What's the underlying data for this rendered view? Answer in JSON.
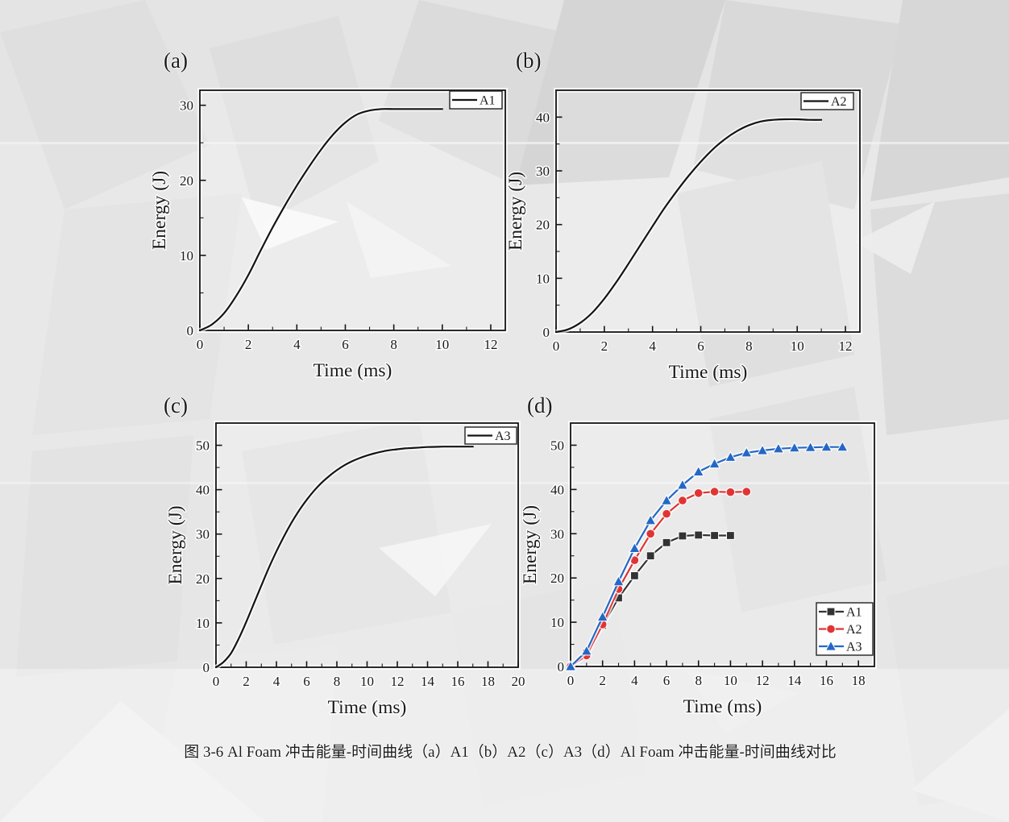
{
  "figure": {
    "caption": "图 3-6 Al Foam 冲击能量-时间曲线（a）A1（b）A2（c）A3（d）Al Foam 冲击能量-时间曲线对比"
  },
  "chart_data": [
    {
      "id": "a",
      "panel_label": "(a)",
      "type": "line",
      "xlabel": "Time (ms)",
      "ylabel": "Energy (J)",
      "xlim": [
        0,
        12.6
      ],
      "ylim": [
        0,
        32
      ],
      "xticks": [
        0,
        2,
        4,
        6,
        8,
        10,
        12
      ],
      "yticks": [
        0,
        10,
        20,
        30
      ],
      "x_minor_step": 1,
      "y_minor_step": 5,
      "grid": false,
      "legend": {
        "position": "top-right",
        "entries": [
          {
            "label": "A1",
            "color": "#141414",
            "marker": "none"
          }
        ]
      },
      "series": [
        {
          "name": "A1",
          "color": "#141414",
          "marker": "none",
          "smooth": true,
          "x": [
            0,
            0.5,
            1,
            1.5,
            2,
            2.5,
            3,
            3.5,
            4,
            4.5,
            5,
            5.5,
            6,
            6.5,
            7,
            7.5,
            8,
            8.5,
            9,
            9.5,
            10
          ],
          "y": [
            0,
            0.8,
            2.3,
            4.6,
            7.4,
            10.6,
            13.7,
            16.6,
            19.3,
            21.8,
            24.1,
            26.1,
            27.7,
            28.8,
            29.3,
            29.5,
            29.5,
            29.5,
            29.5,
            29.5,
            29.5
          ]
        }
      ]
    },
    {
      "id": "b",
      "panel_label": "(b)",
      "type": "line",
      "xlabel": "Time (ms)",
      "ylabel": "Energy (J)",
      "xlim": [
        0,
        12.6
      ],
      "ylim": [
        0,
        45
      ],
      "xticks": [
        0,
        2,
        4,
        6,
        8,
        10,
        12
      ],
      "yticks": [
        0,
        10,
        20,
        30,
        40
      ],
      "x_minor_step": 1,
      "y_minor_step": 5,
      "grid": false,
      "legend": {
        "position": "top-right",
        "entries": [
          {
            "label": "A2",
            "color": "#141414",
            "marker": "none"
          }
        ]
      },
      "series": [
        {
          "name": "A2",
          "color": "#141414",
          "marker": "none",
          "smooth": true,
          "x": [
            0,
            0.5,
            1,
            1.5,
            2,
            2.5,
            3,
            3.5,
            4,
            4.5,
            5,
            5.5,
            6,
            6.5,
            7,
            7.5,
            8,
            8.5,
            9,
            9.5,
            10,
            10.5,
            11
          ],
          "y": [
            0,
            0.5,
            1.7,
            3.6,
            6.2,
            9.3,
            12.7,
            16.2,
            19.7,
            23.1,
            26.2,
            29.1,
            31.7,
            34,
            35.9,
            37.4,
            38.5,
            39.2,
            39.5,
            39.6,
            39.6,
            39.5,
            39.5
          ]
        }
      ]
    },
    {
      "id": "c",
      "panel_label": "(c)",
      "type": "line",
      "xlabel": "Time (ms)",
      "ylabel": "Energy (J)",
      "xlim": [
        0,
        20
      ],
      "ylim": [
        0,
        55
      ],
      "xticks": [
        0,
        2,
        4,
        6,
        8,
        10,
        12,
        14,
        16,
        18,
        20
      ],
      "yticks": [
        0,
        10,
        20,
        30,
        40,
        50
      ],
      "x_minor_step": 1,
      "y_minor_step": 5,
      "grid": false,
      "legend": {
        "position": "top-right",
        "entries": [
          {
            "label": "A3",
            "color": "#141414",
            "marker": "none"
          }
        ]
      },
      "series": [
        {
          "name": "A3",
          "color": "#141414",
          "marker": "none",
          "smooth": true,
          "x": [
            0,
            0.5,
            1,
            1.5,
            2,
            2.5,
            3,
            3.5,
            4,
            4.5,
            5,
            5.5,
            6,
            6.5,
            7,
            7.5,
            8,
            8.5,
            9,
            9.5,
            10,
            10.5,
            11,
            11.5,
            12,
            12.5,
            13,
            13.5,
            14,
            14.5,
            15,
            15.5,
            16,
            16.5,
            17
          ],
          "y": [
            0,
            1.2,
            3.2,
            6.4,
            10.2,
            14.3,
            18.4,
            22.4,
            26.1,
            29.5,
            32.6,
            35.3,
            37.7,
            39.8,
            41.6,
            43.1,
            44.4,
            45.5,
            46.4,
            47.1,
            47.7,
            48.2,
            48.6,
            48.9,
            49.1,
            49.3,
            49.4,
            49.5,
            49.6,
            49.65,
            49.7,
            49.7,
            49.7,
            49.7,
            49.7
          ]
        }
      ]
    },
    {
      "id": "d",
      "panel_label": "(d)",
      "type": "line",
      "xlabel": "Time (ms)",
      "ylabel": "Energy (J)",
      "xlim": [
        0,
        19
      ],
      "ylim": [
        0,
        55
      ],
      "xticks": [
        0,
        2,
        4,
        6,
        8,
        10,
        12,
        14,
        16,
        18
      ],
      "yticks": [
        0,
        10,
        20,
        30,
        40,
        50
      ],
      "x_minor_step": 1,
      "y_minor_step": 5,
      "grid": false,
      "legend": {
        "position": "bottom-right",
        "entries": [
          {
            "label": "A1",
            "color": "#333333",
            "marker": "square"
          },
          {
            "label": "A2",
            "color": "#e03434",
            "marker": "circle"
          },
          {
            "label": "A3",
            "color": "#2468c6",
            "marker": "triangle"
          }
        ]
      },
      "series": [
        {
          "name": "A1",
          "color": "#333333",
          "marker": "square",
          "smooth": false,
          "x": [
            0,
            1,
            2,
            3,
            4,
            5,
            6,
            7,
            8,
            9,
            10
          ],
          "y": [
            0,
            3,
            9.3,
            15.5,
            20.5,
            25,
            28,
            29.5,
            29.7,
            29.6,
            29.6
          ]
        },
        {
          "name": "A2",
          "color": "#e03434",
          "marker": "circle",
          "smooth": false,
          "x": [
            0,
            1,
            2,
            3,
            4,
            5,
            6,
            7,
            8,
            9,
            10,
            11
          ],
          "y": [
            0,
            2.5,
            9.5,
            17.5,
            24,
            30,
            34.5,
            37.5,
            39.2,
            39.5,
            39.4,
            39.5
          ]
        },
        {
          "name": "A3",
          "color": "#2468c6",
          "marker": "triangle",
          "smooth": false,
          "x": [
            0,
            1,
            2,
            3,
            4,
            5,
            6,
            7,
            8,
            9,
            10,
            11,
            12,
            13,
            14,
            15,
            16,
            17
          ],
          "y": [
            0,
            3.5,
            11.2,
            19.2,
            26.7,
            33,
            37.5,
            41,
            44,
            45.8,
            47.3,
            48.3,
            48.8,
            49.2,
            49.4,
            49.5,
            49.6,
            49.6
          ]
        }
      ]
    }
  ]
}
